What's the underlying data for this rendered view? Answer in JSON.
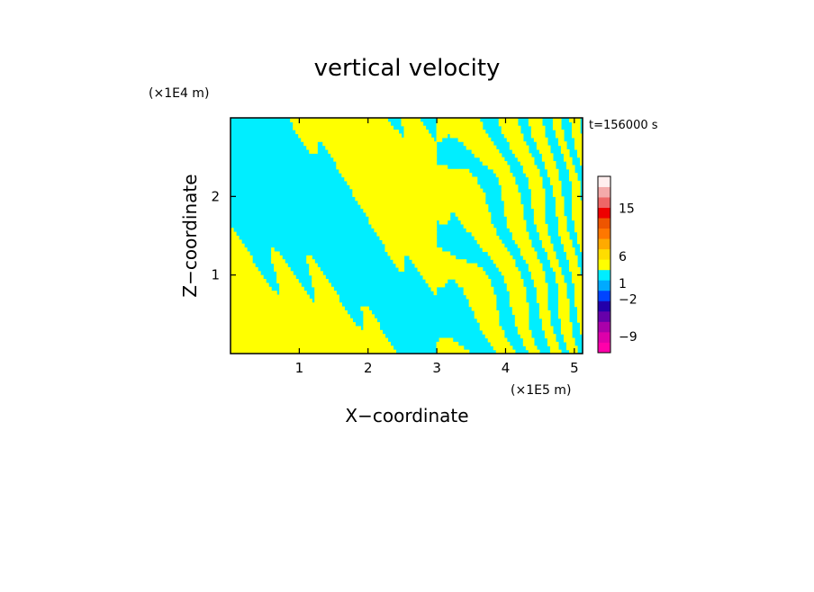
{
  "chart_data": {
    "type": "heatmap",
    "title": "vertical velocity",
    "xlabel": "X−coordinate",
    "ylabel": "Z−coordinate",
    "x_unit": "(×1E5 m)",
    "z_unit": "(×1E4 m)",
    "time_label": "t=156000 s",
    "xlim": [
      0,
      5.12
    ],
    "ylim": [
      0,
      3.0
    ],
    "x_ticks": [
      "1",
      "2",
      "3",
      "4",
      "5"
    ],
    "x_tick_values": [
      1,
      2,
      3,
      4,
      5
    ],
    "z_ticks": [
      "1",
      "2"
    ],
    "z_tick_values": [
      1,
      2
    ],
    "field_colors": [
      "#ffff00",
      "#00eeff"
    ],
    "colorbar": {
      "colors": [
        "#ff00aa",
        "#dd00aa",
        "#aa00aa",
        "#6600aa",
        "#2200aa",
        "#0044ff",
        "#00aaff",
        "#00eeff",
        "#ffff00",
        "#ffdd00",
        "#ffaa00",
        "#ff7700",
        "#ee5500",
        "#ee0000",
        "#ee6666",
        "#f4aaaa",
        "#ffeeee"
      ],
      "tick_labels": [
        "−9",
        "−2",
        "1",
        "6",
        "15"
      ],
      "tick_levels": [
        -9,
        -2,
        1,
        6,
        15
      ]
    }
  }
}
